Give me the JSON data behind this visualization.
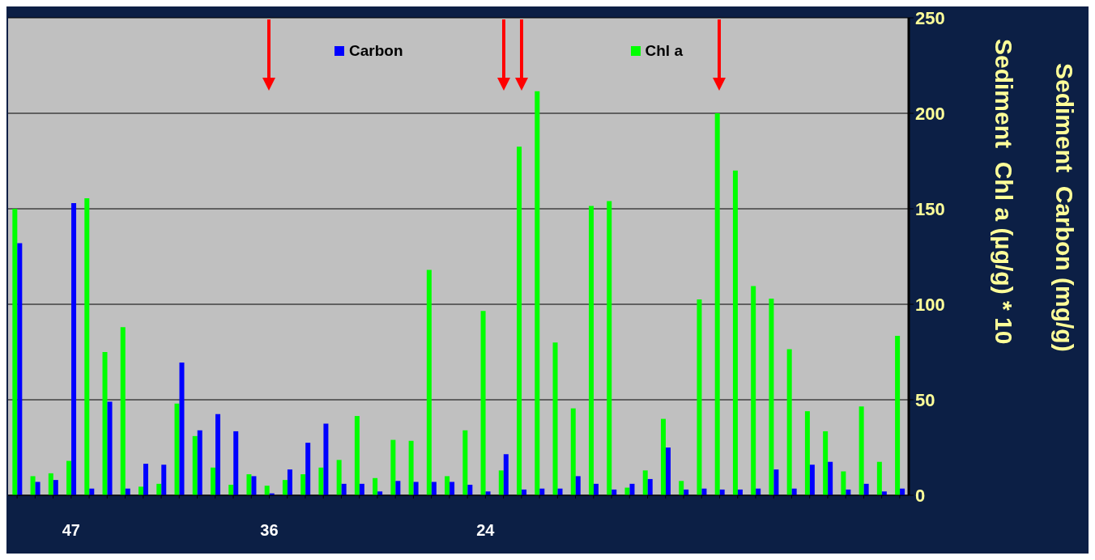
{
  "chart_data": {
    "type": "bar",
    "categories": [
      null,
      null,
      null,
      "47",
      null,
      null,
      null,
      null,
      null,
      null,
      null,
      null,
      null,
      null,
      "36",
      null,
      null,
      null,
      null,
      null,
      null,
      null,
      null,
      null,
      null,
      null,
      "24",
      null,
      null,
      null,
      null,
      null,
      null,
      null,
      null,
      null,
      null,
      null,
      null,
      null,
      null,
      null,
      null,
      null,
      null,
      null,
      null,
      null,
      null,
      null
    ],
    "series": [
      {
        "name": "Chl a",
        "color": "#00ff00",
        "values": [
          150,
          10,
          11.5,
          18,
          155.5,
          75,
          88,
          4.5,
          6,
          48,
          31,
          14.5,
          5.5,
          11,
          5,
          8,
          11,
          14.5,
          18.5,
          41.5,
          9,
          29,
          28.5,
          118,
          10,
          34,
          96.5,
          13,
          182.5,
          211.5,
          80,
          45.5,
          151.5,
          154,
          4,
          13,
          40,
          7.5,
          102.5,
          200,
          170,
          109.5,
          103,
          76.5,
          44,
          33.5,
          12.5,
          46.5,
          17.5,
          83.5
        ]
      },
      {
        "name": "Carbon",
        "color": "#0000ff",
        "values": [
          132,
          7,
          8,
          153,
          3.5,
          49,
          3.5,
          16.5,
          16,
          69.5,
          34,
          42.5,
          33.5,
          10,
          1,
          13.5,
          27.5,
          37.5,
          6,
          6,
          2,
          7.5,
          7,
          7,
          7,
          5.5,
          2,
          21.5,
          3,
          3.5,
          3.5,
          10,
          6,
          3,
          6,
          8.5,
          25,
          3,
          3.5,
          3,
          3,
          3.5,
          13.5,
          3.5,
          16,
          17.5,
          3,
          6,
          2,
          3.5
        ]
      }
    ],
    "ylim": [
      0,
      250
    ],
    "yticks": [
      0,
      50,
      100,
      150,
      200,
      250
    ],
    "ylabel": "Sediment  Chl a (µg/g) * 10",
    "y2label": "Sediment  Carbon (mg/g)",
    "grid": "y",
    "legend": "top"
  }
}
